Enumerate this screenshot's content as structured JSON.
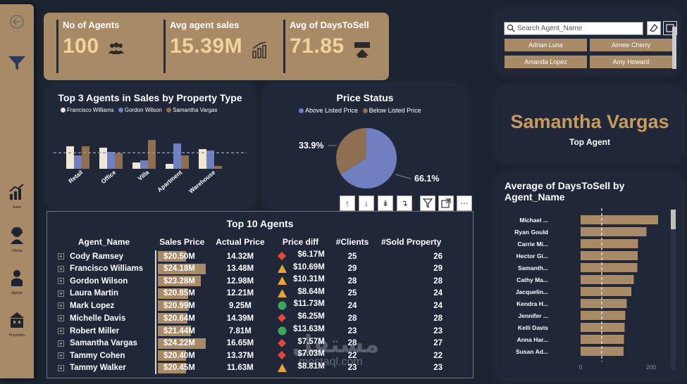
{
  "sidebar": {
    "items": [
      {
        "label": "Sales"
      },
      {
        "label": "Clients"
      },
      {
        "label": "Agents"
      },
      {
        "label": "Properties"
      }
    ]
  },
  "kpis": [
    {
      "title": "No of Agents",
      "value": "100",
      "icon": "people-icon"
    },
    {
      "title": "Avg agent sales",
      "value": "15.39M",
      "icon": "bar-growth-icon"
    },
    {
      "title": "Avg of DaysToSell",
      "value": "71.85",
      "icon": "sold-house-icon"
    }
  ],
  "top3": {
    "title": "Top 3 Agents in Sales by Property Type",
    "legend": [
      "Francisco Williams",
      "Gordon Wilson",
      "Samantha Vargas"
    ],
    "colors": [
      "#efe6d6",
      "#6f7fc0",
      "#8f6f52"
    ]
  },
  "price_status": {
    "title": "Price Status",
    "legend": [
      "Above Listed Price",
      "Below Listed Price"
    ],
    "colors": [
      "#6f7fc0",
      "#8f6f52"
    ]
  },
  "top_agent": {
    "name": "Samantha Vargas",
    "label": "Top Agent"
  },
  "slicer": {
    "placeholder": "Search Agent_Name",
    "items": [
      "Adrian Luna",
      "Aimee Cherry",
      "Amanda Lopez",
      "Amy Howard"
    ]
  },
  "days_chart": {
    "title": "Average of DaysToSell by Agent_Name"
  },
  "table": {
    "title": "Top 10 Agents",
    "headers": [
      "Agent_Name",
      "Sales Price",
      "Actual Price",
      "Price diff",
      "#Clients",
      "#Sold Property"
    ],
    "rows": [
      {
        "name": "Cody Ramsey",
        "sales": "$20.50M",
        "sales_val": 20.5,
        "actual": "14.32M",
        "diff": "$6.17M",
        "ind": "diamond",
        "clients": "25",
        "sold": "26"
      },
      {
        "name": "Francisco Williams",
        "sales": "$24.18M",
        "sales_val": 24.18,
        "actual": "13.48M",
        "diff": "$10.69M",
        "ind": "triangle",
        "clients": "29",
        "sold": "29"
      },
      {
        "name": "Gordon Wilson",
        "sales": "$23.28M",
        "sales_val": 23.28,
        "actual": "12.98M",
        "diff": "$10.31M",
        "ind": "triangle",
        "clients": "28",
        "sold": "28"
      },
      {
        "name": "Laura Martin",
        "sales": "$20.85M",
        "sales_val": 20.85,
        "actual": "12.21M",
        "diff": "$8.64M",
        "ind": "triangle",
        "clients": "25",
        "sold": "24"
      },
      {
        "name": "Mark Lopez",
        "sales": "$20.99M",
        "sales_val": 20.99,
        "actual": "9.25M",
        "diff": "$11.73M",
        "ind": "circle",
        "clients": "24",
        "sold": "24"
      },
      {
        "name": "Michelle Davis",
        "sales": "$20.64M",
        "sales_val": 20.64,
        "actual": "14.39M",
        "diff": "$6.25M",
        "ind": "diamond",
        "clients": "28",
        "sold": "28"
      },
      {
        "name": "Robert Miller",
        "sales": "$21.44M",
        "sales_val": 21.44,
        "actual": "7.81M",
        "diff": "$13.63M",
        "ind": "circle",
        "clients": "23",
        "sold": "23"
      },
      {
        "name": "Samantha Vargas",
        "sales": "$24.22M",
        "sales_val": 24.22,
        "actual": "16.65M",
        "diff": "$7.57M",
        "ind": "diamond",
        "clients": "28",
        "sold": "27"
      },
      {
        "name": "Tammy Cohen",
        "sales": "$20.40M",
        "sales_val": 20.4,
        "actual": "13.37M",
        "diff": "$7.03M",
        "ind": "diamond",
        "clients": "22",
        "sold": "22"
      },
      {
        "name": "Tammy Walker",
        "sales": "$20.45M",
        "sales_val": 20.45,
        "actual": "11.63M",
        "diff": "$8.81M",
        "ind": "triangle",
        "clients": "23",
        "sold": "23"
      }
    ]
  },
  "watermark": {
    "arabic": "مستقل",
    "latin": "mostaql.com"
  },
  "chart_data": [
    {
      "type": "bar",
      "title": "Top 3 Agents in Sales by Property Type",
      "categories": [
        "Retail",
        "Office",
        "Villa",
        "Apartment",
        "Warehouse"
      ],
      "series": [
        {
          "name": "Francisco Williams",
          "values": [
            3.2,
            3.0,
            0.9,
            0.7,
            2.8
          ]
        },
        {
          "name": "Gordon Wilson",
          "values": [
            1.9,
            2.4,
            1.2,
            3.6,
            2.6
          ]
        },
        {
          "name": "Samantha Vargas",
          "values": [
            3.2,
            2.2,
            4.1,
            1.9,
            0.4
          ]
        }
      ],
      "reference_line": "dashed average"
    },
    {
      "type": "pie",
      "title": "Price Status",
      "labels": [
        "Above Listed Price",
        "Below Listed Price"
      ],
      "values": [
        66.1,
        33.9
      ],
      "value_labels": [
        "66.1%",
        "33.9%"
      ]
    },
    {
      "type": "bar",
      "orientation": "horizontal",
      "title": "Average of DaysToSell by Agent_Name",
      "categories": [
        "Michael ...",
        "Ryan Gould",
        "Carrie Mi...",
        "Hector Gi...",
        "Samanth...",
        "Cathy Ma...",
        "Jacquelin...",
        "Kendra H...",
        "Jennifer ...",
        "Kelli Davis",
        "Anna Har...",
        "Susan Ad..."
      ],
      "values": [
        220,
        187,
        163,
        162,
        161,
        151,
        144,
        131,
        127,
        125,
        123,
        122
      ],
      "xlim": [
        0,
        250
      ],
      "xticks": [
        "0",
        "200"
      ],
      "reference_line": "dashed average"
    }
  ]
}
